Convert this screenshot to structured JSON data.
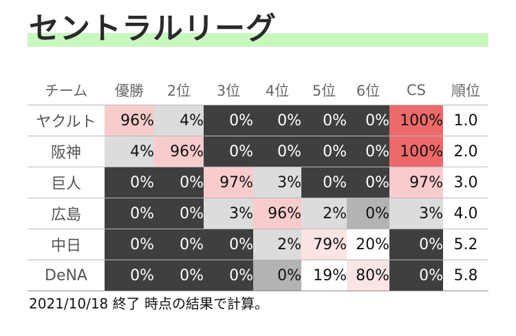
{
  "title": "セントラルリーグ",
  "table": {
    "headers": [
      "チーム",
      "優勝",
      "2位",
      "3位",
      "4位",
      "5位",
      "6位",
      "CS",
      "順位",
      "?"
    ],
    "rows": [
      {
        "team": "ヤクルト",
        "cells": [
          "96%",
          "4%",
          "0%",
          "0%",
          "0%",
          "0%",
          "100%"
        ],
        "rank": "1.0"
      },
      {
        "team": "阪神",
        "cells": [
          "4%",
          "96%",
          "0%",
          "0%",
          "0%",
          "0%",
          "100%"
        ],
        "rank": "2.0"
      },
      {
        "team": "巨人",
        "cells": [
          "0%",
          "0%",
          "97%",
          "3%",
          "0%",
          "0%",
          "97%"
        ],
        "rank": "3.0"
      },
      {
        "team": "広島",
        "cells": [
          "0%",
          "0%",
          "3%",
          "96%",
          "2%",
          "0%",
          "3%"
        ],
        "rank": "4.0"
      },
      {
        "team": "中日",
        "cells": [
          "0%",
          "0%",
          "0%",
          "2%",
          "79%",
          "20%",
          "0%"
        ],
        "rank": "5.2"
      },
      {
        "team": "DeNA",
        "cells": [
          "0%",
          "0%",
          "0%",
          "0%",
          "19%",
          "80%",
          "0%"
        ],
        "rank": "5.8"
      }
    ]
  },
  "footer": "2021/10/18 終了 時点の結果で計算。"
}
